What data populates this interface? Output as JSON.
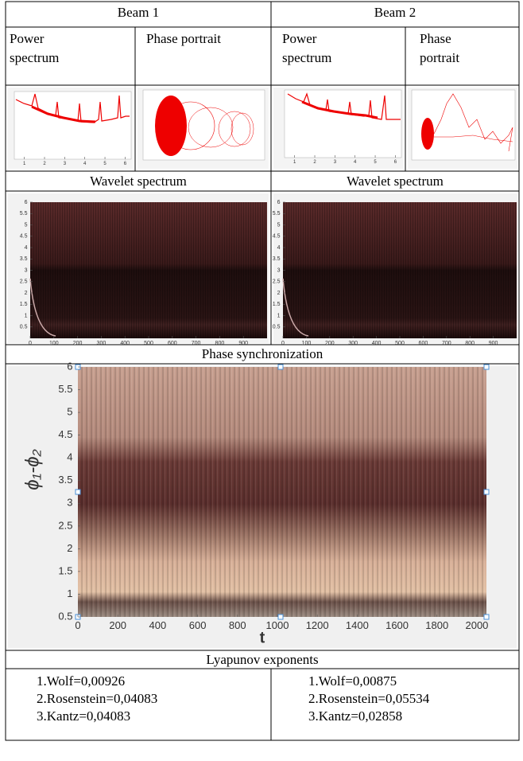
{
  "table": {
    "header": [
      "Beam 1",
      "Beam 2"
    ],
    "subheaders": [
      "Power spectrum",
      "Phase portrait",
      "Power spectrum",
      "Phase portrait"
    ],
    "wavelet_labels": [
      "Wavelet spectrum",
      "Wavelet spectrum"
    ],
    "sync_label": "Phase synchronization",
    "lyapunov_label": "Lyapunov exponents",
    "lyapunov": [
      [
        "1.Wolf=0,00926",
        "2.Rosenstein=0,04083",
        "3.Kantz=0,04083"
      ],
      [
        "1.Wolf=0,00875",
        "2.Rosenstein=0,05534",
        "3.Kantz=0,02858"
      ]
    ]
  },
  "power_spectrum": {
    "xlim": [
      0.5,
      6.3
    ],
    "xticks": [
      1,
      2,
      3,
      4,
      5,
      6
    ]
  },
  "wavelet_plot": {
    "xlim": [
      0,
      1000
    ],
    "xticks": [
      0,
      100,
      200,
      300,
      400,
      500,
      600,
      700,
      800,
      900
    ],
    "ylim": [
      0,
      6
    ],
    "yticks": [
      0.5,
      1,
      1.5,
      2,
      2.5,
      3,
      3.5,
      4,
      4.5,
      5,
      5.5,
      6
    ]
  },
  "sync_plot": {
    "xlabel": "t",
    "ylabel": "ϕ₁-ϕ₂",
    "xlim": [
      0,
      2048
    ],
    "xticks": [
      0,
      200,
      400,
      600,
      800,
      1000,
      1200,
      1400,
      1600,
      1800,
      2000
    ],
    "ylim": [
      0.5,
      6
    ],
    "yticks": [
      0.5,
      1,
      1.5,
      2,
      2.5,
      3,
      3.5,
      4,
      4.5,
      5,
      5.5,
      6
    ]
  }
}
